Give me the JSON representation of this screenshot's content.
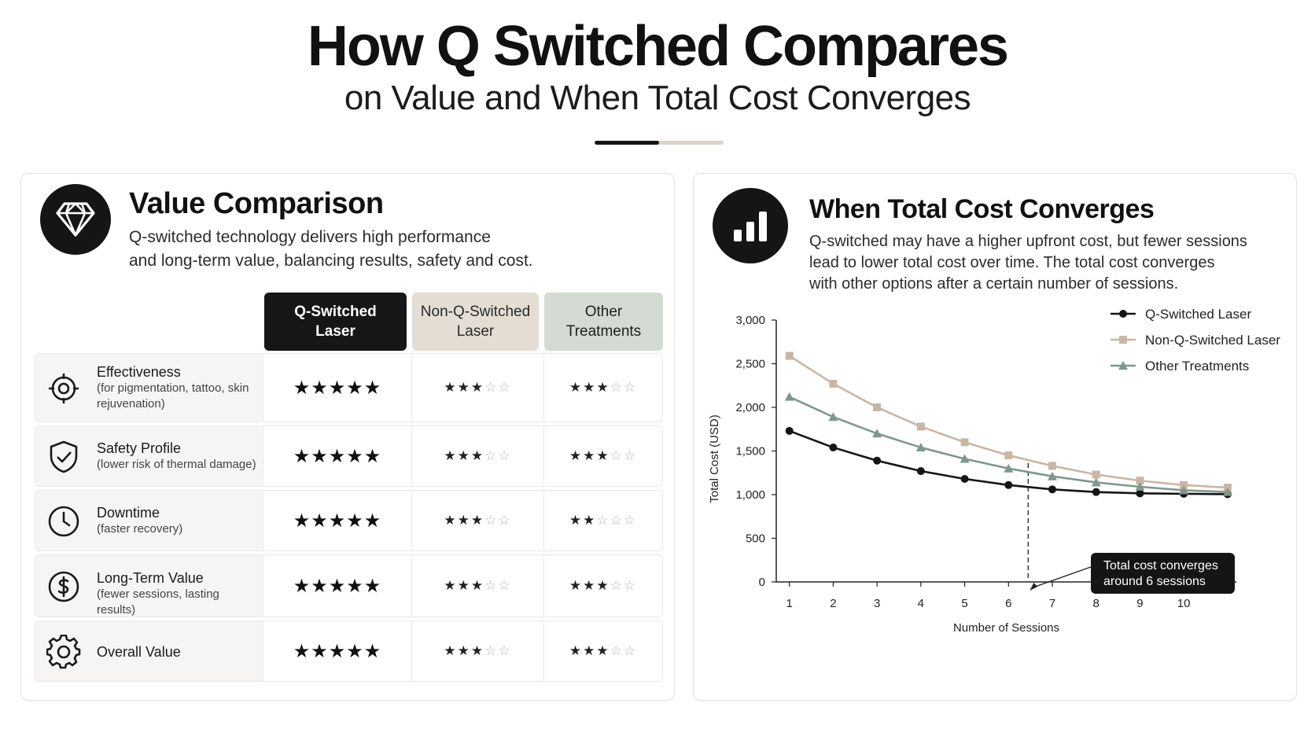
{
  "header": {
    "title": "How Q Switched Compares",
    "subtitle": "on Value and When Total Cost Converges"
  },
  "value_comparison": {
    "icon": "diamond-icon",
    "title": "Value Comparison",
    "description_line1": "Q-switched technology delivers high performance",
    "description_line2": "and long-term value, balancing results, safety and cost.",
    "columns": {
      "q_line1": "Q-Switched",
      "q_line2": "Laser",
      "n_line1": "Non-Q-Switched",
      "n_line2": "Laser",
      "o_line1": "Other",
      "o_line2": "Treatments"
    },
    "rows": [
      {
        "icon": "target-icon",
        "label": "Effectiveness",
        "sub": "(for pigmentation, tattoo, skin rejuvenation)",
        "q": 5,
        "n": 3,
        "o": 3
      },
      {
        "icon": "shield-check-icon",
        "label": "Safety Profile",
        "sub": "(lower risk of thermal damage)",
        "q": 5,
        "n": 3,
        "o": 3
      },
      {
        "icon": "clock-icon",
        "label": "Downtime",
        "sub": "(faster recovery)",
        "q": 5,
        "n": 3,
        "o": 2
      },
      {
        "icon": "dollar-circle-icon",
        "label": "Long-Term Value",
        "sub": "(fewer sessions, lasting results)",
        "q": 5,
        "n": 3,
        "o": 3
      },
      {
        "icon": "gear-icon",
        "label": "Overall Value",
        "sub": "",
        "q": 5,
        "n": 3,
        "o": 3
      }
    ],
    "max_stars": 5
  },
  "cost_convergence": {
    "icon": "bar-chart-icon",
    "title": "When Total Cost Converges",
    "description_line1": "Q-switched may have a higher upfront cost, but fewer sessions",
    "description_line2": "lead to lower total cost over time. The total cost converges",
    "description_line3": "with other options after a certain number of sessions.",
    "annotation_line1": "Total cost converges",
    "annotation_line2": "around 6 sessions"
  },
  "chart_data": {
    "type": "line",
    "xlabel": "Number of Sessions",
    "ylabel": "Total Cost (USD)",
    "x": [
      1,
      2,
      3,
      4,
      5,
      6,
      7,
      8,
      9,
      10,
      11
    ],
    "x_ticks": [
      1,
      2,
      3,
      4,
      5,
      6,
      7,
      8,
      9,
      10
    ],
    "y_ticks": [
      0,
      500,
      1000,
      1500,
      2000,
      2500,
      3000
    ],
    "y_tick_labels": [
      "0",
      "500",
      "1,000",
      "1,500",
      "2,000",
      "2,500",
      "3,000"
    ],
    "ylim": [
      0,
      3000
    ],
    "xlim": [
      0.7,
      11.2
    ],
    "grid": false,
    "legend_position": "top-right",
    "convergence_x": 6.45,
    "series": [
      {
        "name": "Q-Switched Laser",
        "color": "#151515",
        "marker": "circle",
        "values": [
          1730,
          1540,
          1390,
          1270,
          1180,
          1110,
          1060,
          1030,
          1015,
          1010,
          1005
        ]
      },
      {
        "name": "Non-Q-Switched Laser",
        "color": "#c9b6a3",
        "marker": "square",
        "values": [
          2590,
          2270,
          2000,
          1780,
          1600,
          1450,
          1330,
          1230,
          1160,
          1110,
          1080
        ]
      },
      {
        "name": "Other Treatments",
        "color": "#7f978c",
        "marker": "triangle",
        "values": [
          2120,
          1890,
          1700,
          1540,
          1410,
          1300,
          1210,
          1140,
          1090,
          1050,
          1030
        ]
      }
    ]
  }
}
